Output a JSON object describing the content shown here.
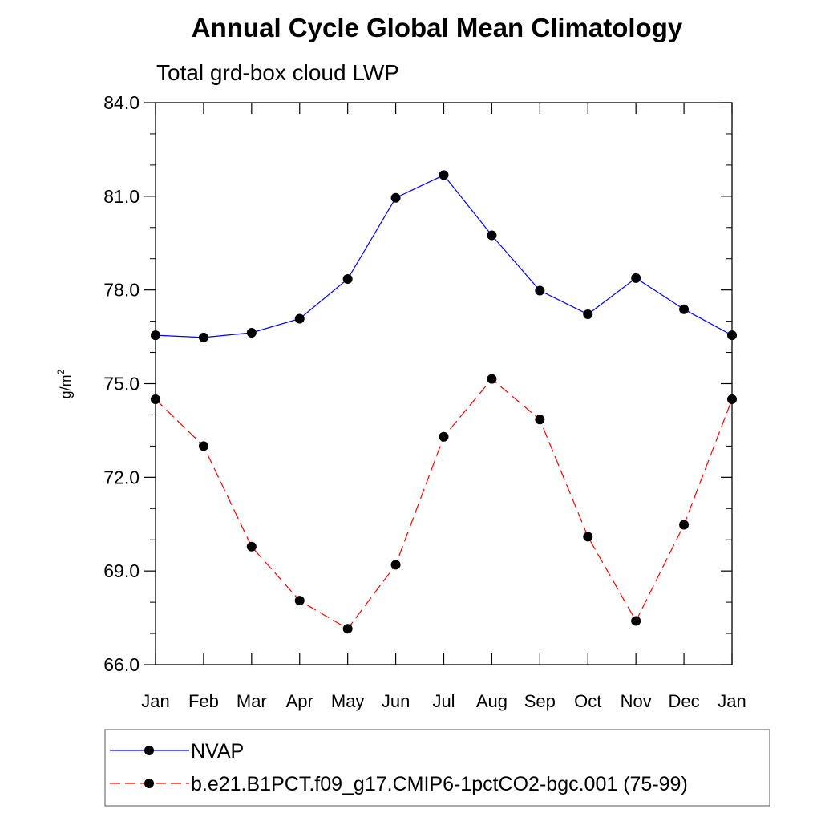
{
  "chart_data": {
    "type": "line",
    "title": "Annual Cycle Global Mean Climatology",
    "subtitle": "Total grd-box cloud LWP",
    "ylabel": "g/m",
    "ylabel_superscript": "2",
    "categories": [
      "Jan",
      "Feb",
      "Mar",
      "Apr",
      "May",
      "Jun",
      "Jul",
      "Aug",
      "Sep",
      "Oct",
      "Nov",
      "Dec",
      "Jan"
    ],
    "ylim": [
      66.0,
      84.0
    ],
    "yticks": [
      66.0,
      69.0,
      72.0,
      75.0,
      78.0,
      81.0,
      84.0
    ],
    "ytick_labels": [
      "66.0",
      "69.0",
      "72.0",
      "75.0",
      "78.0",
      "81.0",
      "84.0"
    ],
    "grid": false,
    "legend_position": "bottom",
    "series": [
      {
        "name": "NVAP",
        "color": "#0000ff",
        "line_style": "solid",
        "marker": "filled-circle",
        "values": [
          76.55,
          76.48,
          76.63,
          77.08,
          78.35,
          80.95,
          81.68,
          79.75,
          77.98,
          77.22,
          78.38,
          77.38,
          76.55
        ]
      },
      {
        "name": "b.e21.B1PCT.f09_g17.CMIP6-1pctCO2-bgc.001 (75-99)",
        "color": "#ff0000",
        "line_style": "dashed",
        "marker": "filled-circle",
        "values": [
          74.5,
          73.0,
          69.78,
          68.05,
          67.15,
          69.2,
          73.3,
          75.15,
          73.85,
          70.1,
          67.4,
          70.48,
          74.5
        ]
      }
    ]
  }
}
